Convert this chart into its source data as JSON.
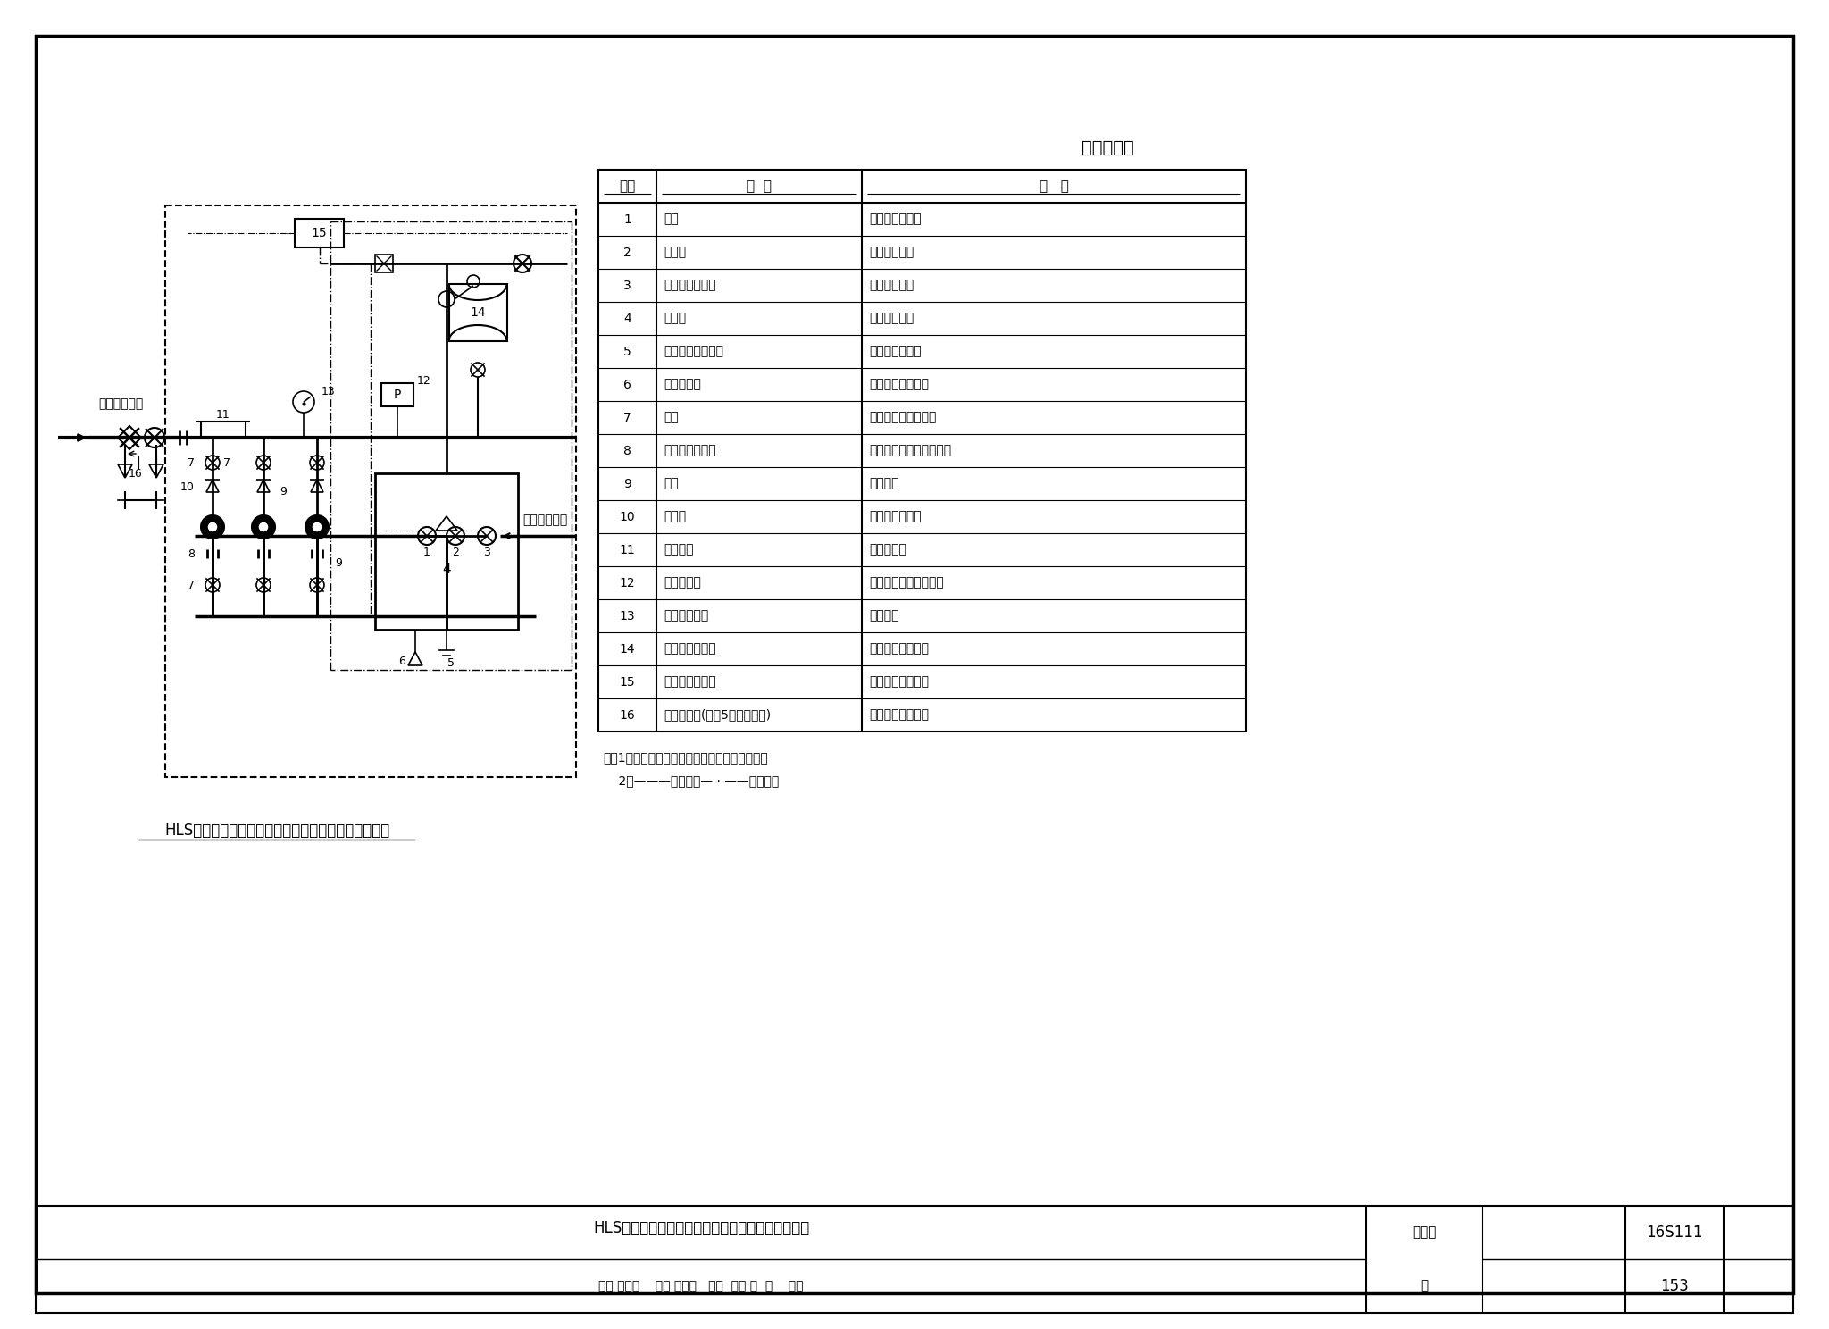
{
  "title": "主要部件表",
  "diagram_title": "HLS系列微机控制变频调速供水设备组成及控制原理图",
  "table_headers": [
    "序号",
    "名  称",
    "用   途"
  ],
  "table_rows": [
    [
      "1",
      "阀门",
      "水箱进水控制阀"
    ],
    [
      "2",
      "过滤器",
      "滤除水中杂质"
    ],
    [
      "3",
      "液压水位控制阀",
      "水箱自动补水"
    ],
    [
      "4",
      "储水箱",
      "储存所需水量"
    ],
    [
      "5",
      "水箱自洁消毒装置",
      "对水箱储水消毒"
    ],
    [
      "6",
      "不锈钢滤网",
      "防止蚊虫进入水箱"
    ],
    [
      "7",
      "阀门",
      "水泵进、出口控制阀"
    ],
    [
      "8",
      "可曲挠橡胶接头",
      "隔振、便于管路拆卸检修"
    ],
    [
      "9",
      "水泵",
      "增压供水"
    ],
    [
      "10",
      "止回阀",
      "防止压力水回流"
    ],
    [
      "11",
      "出水总管",
      "供用户用水"
    ],
    [
      "12",
      "压力传感器",
      "检测设备出水供水压力"
    ],
    [
      "13",
      "电接点压力表",
      "超压保护"
    ],
    [
      "14",
      "隔膜式气压水罐",
      "保持系统压力稳定"
    ],
    [
      "15",
      "智能变频控制柜",
      "控制水泵变频运行"
    ],
    [
      "16",
      "消毒器接口(序号5未设置时用)",
      "供连接消毒装置用"
    ]
  ],
  "note1": "注：1．图中虚线框内为厂家成套设备供货范围。",
  "note2": "    2．———控制线；— · ——信号线。",
  "footer_title": "HLS系列微机控制变频调速供水设备组成及控制原理",
  "footer_right_label": "图集号",
  "footer_right_value": "16S111",
  "footer_page_label": "页",
  "footer_page_value": "153",
  "footer_staff1": "审核 罗定元",
  "footer_staff2": "校对 刘旭军",
  "footer_staff3": "胡颖",
  "footer_staff4": "设计 施  炜",
  "footer_staff5": "范峰"
}
